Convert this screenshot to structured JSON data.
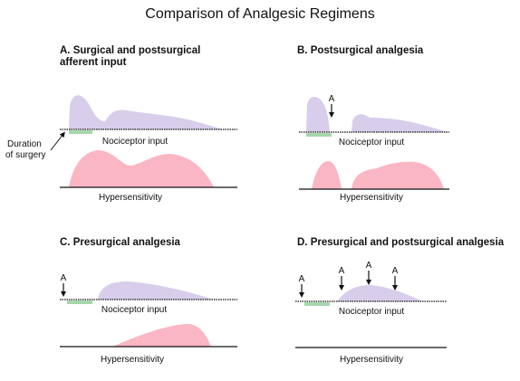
{
  "title": "Comparison of Analgesic Regimens",
  "panels": {
    "a": {
      "heading_line1": "A. Surgical and postsurgical",
      "heading_line2": "afferent input"
    },
    "b": {
      "heading": "B. Postsurgical analgesia"
    },
    "c": {
      "heading": "C. Presurgical analgesia"
    },
    "d": {
      "heading": "D. Presurgical and postsurgical analgesia"
    }
  },
  "labels": {
    "nociceptor_input": "Nociceptor input",
    "hypersensitivity": "Hypersensitivity",
    "duration_line1": "Duration",
    "duration_line2": "of surgery",
    "analgesia_marker": "A"
  },
  "colors": {
    "nociceptor": "#d8cdea",
    "hypersensitivity": "#fbb6c4",
    "surgery_bar": "#a6d6ab",
    "baseline": "#111111"
  }
}
